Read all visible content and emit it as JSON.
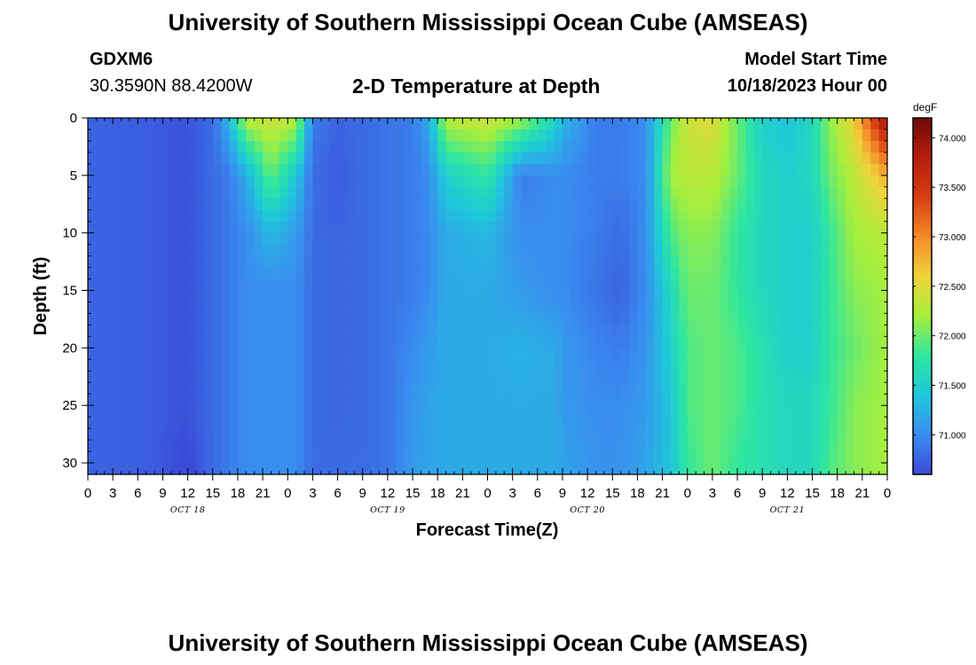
{
  "header": {
    "title": "University of Southern Mississippi Ocean Cube (AMSEAS)",
    "station_id": "GDXM6",
    "coordinates": "30.3590N  88.4200W",
    "plot_title": "2-D Temperature at Depth",
    "model_start_label": "Model Start Time",
    "model_start_value": "10/18/2023 Hour 00"
  },
  "footer": {
    "title": "University of Southern Mississippi Ocean Cube (AMSEAS)"
  },
  "chart_data": {
    "type": "heatmap",
    "title": "2-D Temperature at Depth",
    "xlabel": "Forecast Time(Z)",
    "ylabel": "Depth (ft)",
    "colorbar_unit": "degF",
    "x_hours": [
      0,
      3,
      6,
      9,
      12,
      15,
      18,
      21,
      24,
      27,
      30,
      33,
      36,
      39,
      42,
      45,
      48,
      51,
      54,
      57,
      60,
      63,
      66,
      69,
      72,
      75,
      78,
      81,
      84,
      87,
      90,
      93,
      96
    ],
    "x_tick_labels": [
      "0",
      "3",
      "6",
      "9",
      "12",
      "15",
      "18",
      "21",
      "0",
      "3",
      "6",
      "9",
      "12",
      "15",
      "18",
      "21",
      "0",
      "3",
      "6",
      "9",
      "12",
      "15",
      "18",
      "21",
      "0",
      "3",
      "6",
      "9",
      "12",
      "15",
      "18",
      "21",
      "0"
    ],
    "day_labels": [
      {
        "label": "OCT 18",
        "hour": 12
      },
      {
        "label": "OCT 19",
        "hour": 36
      },
      {
        "label": "OCT 20",
        "hour": 60
      },
      {
        "label": "OCT 21",
        "hour": 84
      }
    ],
    "x_range": [
      0,
      96
    ],
    "y_range": [
      0,
      31
    ],
    "y_ticks": [
      0,
      5,
      10,
      15,
      20,
      25,
      30
    ],
    "y_tick_labels": [
      "0",
      "5",
      "10",
      "15",
      "20",
      "25",
      "30"
    ],
    "colorbar_ticks": [
      71.0,
      71.5,
      72.0,
      72.5,
      73.0,
      73.5,
      74.0
    ],
    "colorbar_tick_labels": [
      "71.000",
      "71.500",
      "72.000",
      "72.500",
      "73.000",
      "73.500",
      "74.000"
    ],
    "colorbar_range": [
      70.6,
      74.2
    ],
    "depths": [
      0,
      5,
      10,
      15,
      20,
      25,
      31
    ],
    "temperature_profiles": [
      {
        "hour": 0,
        "values": [
          70.75,
          70.75,
          70.75,
          70.75,
          70.75,
          70.75,
          70.75
        ]
      },
      {
        "hour": 8,
        "values": [
          70.7,
          70.7,
          70.7,
          70.7,
          70.7,
          70.7,
          70.7
        ]
      },
      {
        "hour": 12,
        "values": [
          70.65,
          70.65,
          70.65,
          70.65,
          70.65,
          70.65,
          70.55
        ]
      },
      {
        "hour": 15,
        "values": [
          70.8,
          70.8,
          70.8,
          70.8,
          70.8,
          70.8,
          70.8
        ]
      },
      {
        "hour": 17,
        "values": [
          71.3,
          70.9,
          70.9,
          70.9,
          70.9,
          70.9,
          70.9
        ]
      },
      {
        "hour": 19,
        "values": [
          72.3,
          71.2,
          71.0,
          71.0,
          71.0,
          71.0,
          71.0
        ]
      },
      {
        "hour": 22,
        "values": [
          72.4,
          72.0,
          71.3,
          71.0,
          71.0,
          71.0,
          71.0
        ]
      },
      {
        "hour": 25,
        "values": [
          72.3,
          71.4,
          71.1,
          71.0,
          71.0,
          71.0,
          71.0
        ]
      },
      {
        "hour": 27,
        "values": [
          70.9,
          70.8,
          70.8,
          70.8,
          70.8,
          70.8,
          70.8
        ]
      },
      {
        "hour": 30,
        "values": [
          70.75,
          70.7,
          70.75,
          70.75,
          70.75,
          70.75,
          70.8
        ]
      },
      {
        "hour": 33,
        "values": [
          70.8,
          70.8,
          70.8,
          70.8,
          70.8,
          70.8,
          70.8
        ]
      },
      {
        "hour": 36,
        "values": [
          70.85,
          70.85,
          70.85,
          70.85,
          70.85,
          70.85,
          70.85
        ]
      },
      {
        "hour": 39,
        "values": [
          70.9,
          70.9,
          70.9,
          70.9,
          71.0,
          71.05,
          71.1
        ]
      },
      {
        "hour": 41,
        "values": [
          71.2,
          71.0,
          71.0,
          71.0,
          71.1,
          71.15,
          71.15
        ]
      },
      {
        "hour": 43,
        "values": [
          72.3,
          71.5,
          71.2,
          71.2,
          71.2,
          71.2,
          71.2
        ]
      },
      {
        "hour": 48,
        "values": [
          72.4,
          71.8,
          71.3,
          71.2,
          71.2,
          71.2,
          71.2
        ]
      },
      {
        "hour": 52,
        "values": [
          72.2,
          70.9,
          71.0,
          71.1,
          71.25,
          71.2,
          71.2
        ]
      },
      {
        "hour": 56,
        "values": [
          71.6,
          71.0,
          71.0,
          71.0,
          71.2,
          71.2,
          71.2
        ]
      },
      {
        "hour": 57,
        "values": [
          71.3,
          71.0,
          71.0,
          71.0,
          71.1,
          71.1,
          71.15
        ]
      },
      {
        "hour": 61,
        "values": [
          70.9,
          70.9,
          70.9,
          70.85,
          70.95,
          71.0,
          71.05
        ]
      },
      {
        "hour": 64,
        "values": [
          70.9,
          70.9,
          70.8,
          70.75,
          70.9,
          71.0,
          71.05
        ]
      },
      {
        "hour": 67,
        "values": [
          71.0,
          71.0,
          71.0,
          71.0,
          71.05,
          71.1,
          71.15
        ]
      },
      {
        "hour": 70,
        "values": [
          72.0,
          72.2,
          71.9,
          71.6,
          71.5,
          71.4,
          71.4
        ]
      },
      {
        "hour": 72,
        "values": [
          72.4,
          72.3,
          72.1,
          72.0,
          71.9,
          71.9,
          71.8
        ]
      },
      {
        "hour": 75,
        "values": [
          72.5,
          72.3,
          72.1,
          72.0,
          72.0,
          72.0,
          72.0
        ]
      },
      {
        "hour": 78,
        "values": [
          72.0,
          72.0,
          71.8,
          71.8,
          71.9,
          71.9,
          71.8
        ]
      },
      {
        "hour": 81,
        "values": [
          71.5,
          71.6,
          71.6,
          71.6,
          71.7,
          71.7,
          71.7
        ]
      },
      {
        "hour": 84,
        "values": [
          71.4,
          71.5,
          71.5,
          71.5,
          71.5,
          71.6,
          71.6
        ]
      },
      {
        "hour": 87,
        "values": [
          71.6,
          71.6,
          71.5,
          71.5,
          71.5,
          71.6,
          71.6
        ]
      },
      {
        "hour": 89,
        "values": [
          72.1,
          72.0,
          71.8,
          71.8,
          71.8,
          71.8,
          71.9
        ]
      },
      {
        "hour": 92,
        "values": [
          72.6,
          72.3,
          72.2,
          72.1,
          72.0,
          72.1,
          72.1
        ]
      },
      {
        "hour": 96,
        "values": [
          74.0,
          72.8,
          72.3,
          72.2,
          72.2,
          72.2,
          72.2
        ]
      }
    ],
    "colors": {
      "palette": [
        "#3b4bd8",
        "#3a8df0",
        "#1fc7dc",
        "#2ee6a0",
        "#a6ef3c",
        "#f0d23a",
        "#f58a2a",
        "#d63e12",
        "#b51e0b",
        "#6e0a0a"
      ]
    }
  }
}
